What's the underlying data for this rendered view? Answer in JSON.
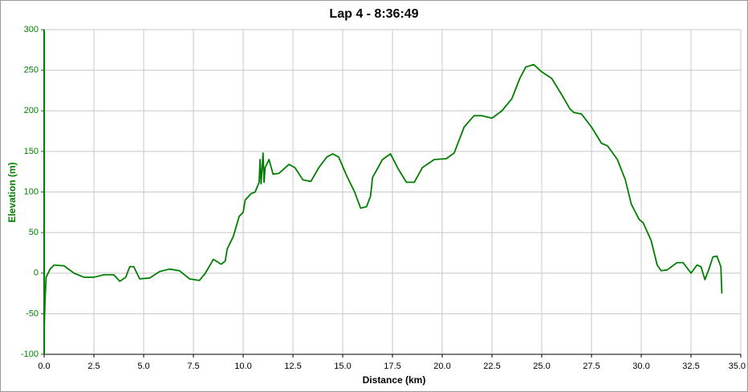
{
  "chart_data": {
    "type": "line",
    "title": "Lap 4 - 8:36:49",
    "x_label": "Distance (km)",
    "y_label": "Elevation (m)",
    "x": [
      0.0,
      0.05,
      0.1,
      0.3,
      0.5,
      1.0,
      1.5,
      2.0,
      2.5,
      3.0,
      3.5,
      3.8,
      4.1,
      4.3,
      4.5,
      4.8,
      5.3,
      5.8,
      6.3,
      6.8,
      7.3,
      7.8,
      8.1,
      8.5,
      8.9,
      9.1,
      9.2,
      9.5,
      9.8,
      10.0,
      10.1,
      10.4,
      10.6,
      10.8,
      10.85,
      10.9,
      11.0,
      11.05,
      11.1,
      11.3,
      11.5,
      11.8,
      12.3,
      12.6,
      13.0,
      13.4,
      13.8,
      14.2,
      14.5,
      14.8,
      15.2,
      15.6,
      15.9,
      16.2,
      16.4,
      16.5,
      17.0,
      17.4,
      17.8,
      18.2,
      18.6,
      19.0,
      19.6,
      20.2,
      20.6,
      21.1,
      21.6,
      22.0,
      22.5,
      23.0,
      23.5,
      23.9,
      24.2,
      24.6,
      25.0,
      25.5,
      26.0,
      26.4,
      26.6,
      27.0,
      27.5,
      28.0,
      28.3,
      28.8,
      29.2,
      29.5,
      29.9,
      30.1,
      30.5,
      30.8,
      31.0,
      31.3,
      31.8,
      32.1,
      32.5,
      32.8,
      33.0,
      33.2,
      33.4,
      33.6,
      33.8,
      34.0,
      34.05
    ],
    "series": [
      {
        "name": "Elevation",
        "color": "#007f00",
        "values": [
          -70,
          -30,
          -5,
          5,
          10,
          9,
          0,
          -5,
          -5,
          -2,
          -2,
          -10,
          -5,
          8,
          8,
          -7,
          -6,
          2,
          5,
          3,
          -7,
          -9,
          0,
          17,
          11,
          15,
          30,
          45,
          70,
          75,
          90,
          98,
          100,
          112,
          140,
          110,
          148,
          112,
          130,
          140,
          122,
          123,
          134,
          130,
          115,
          113,
          130,
          143,
          147,
          143,
          120,
          100,
          80,
          82,
          95,
          118,
          140,
          147,
          128,
          112,
          112,
          130,
          140,
          141,
          148,
          180,
          194,
          194,
          191,
          200,
          215,
          240,
          254,
          257,
          248,
          240,
          220,
          203,
          198,
          196,
          180,
          160,
          157,
          140,
          115,
          85,
          66,
          62,
          40,
          10,
          3,
          4,
          13,
          13,
          0,
          10,
          8,
          -8,
          5,
          20,
          21,
          8,
          -25
        ]
      }
    ],
    "xlim": [
      0,
      35
    ],
    "ylim": [
      -100,
      300
    ],
    "xticks": [
      {
        "value": 0,
        "label": "0.0"
      },
      2.5,
      {
        "value": 5,
        "label": "5.0"
      },
      7.5,
      {
        "value": 10,
        "label": "10.0"
      },
      12.5,
      {
        "value": 15,
        "label": "15.0"
      },
      17.5,
      {
        "value": 20,
        "label": "20.0"
      },
      22.5,
      {
        "value": 25,
        "label": "25.0"
      },
      27.5,
      {
        "value": 30,
        "label": "30.0"
      },
      32.5,
      {
        "value": 35,
        "label": "35.0"
      }
    ],
    "yticks": [
      -100,
      -50,
      0,
      50,
      100,
      150,
      200,
      250,
      300
    ],
    "grid": true,
    "y_axis_color": "#007f00"
  }
}
